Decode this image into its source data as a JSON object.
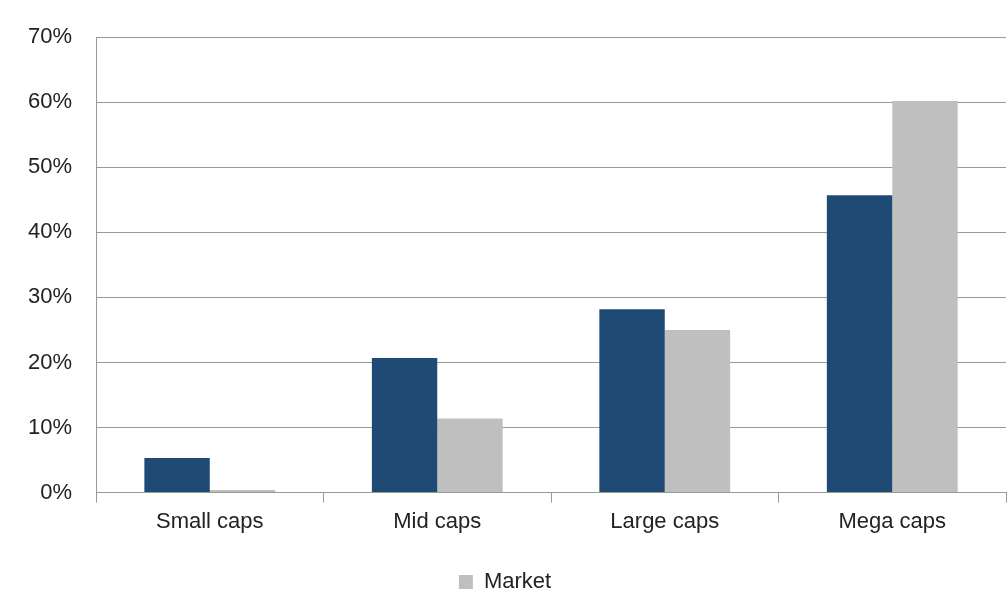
{
  "chart_data": {
    "type": "bar",
    "categories": [
      "Small caps",
      "Mid caps",
      "Large caps",
      "Mega caps"
    ],
    "series": [
      {
        "color": "#1f4a73",
        "values": [
          5.3,
          20.7,
          28.2,
          45.7
        ]
      },
      {
        "name": "Market",
        "color": "#bfbfbf",
        "values": [
          0.4,
          11.4,
          25.0,
          60.2
        ]
      }
    ],
    "ylim": [
      0,
      70
    ],
    "yticks": [
      {
        "value": 0,
        "label": "0%"
      },
      {
        "value": 10,
        "label": "10%"
      },
      {
        "value": 20,
        "label": "20%"
      },
      {
        "value": 30,
        "label": "30%"
      },
      {
        "value": 40,
        "label": "40%"
      },
      {
        "value": 50,
        "label": "50%"
      },
      {
        "value": 60,
        "label": "60%"
      },
      {
        "value": 70,
        "label": "70%"
      }
    ],
    "grid": "y",
    "legend": "bottom"
  }
}
